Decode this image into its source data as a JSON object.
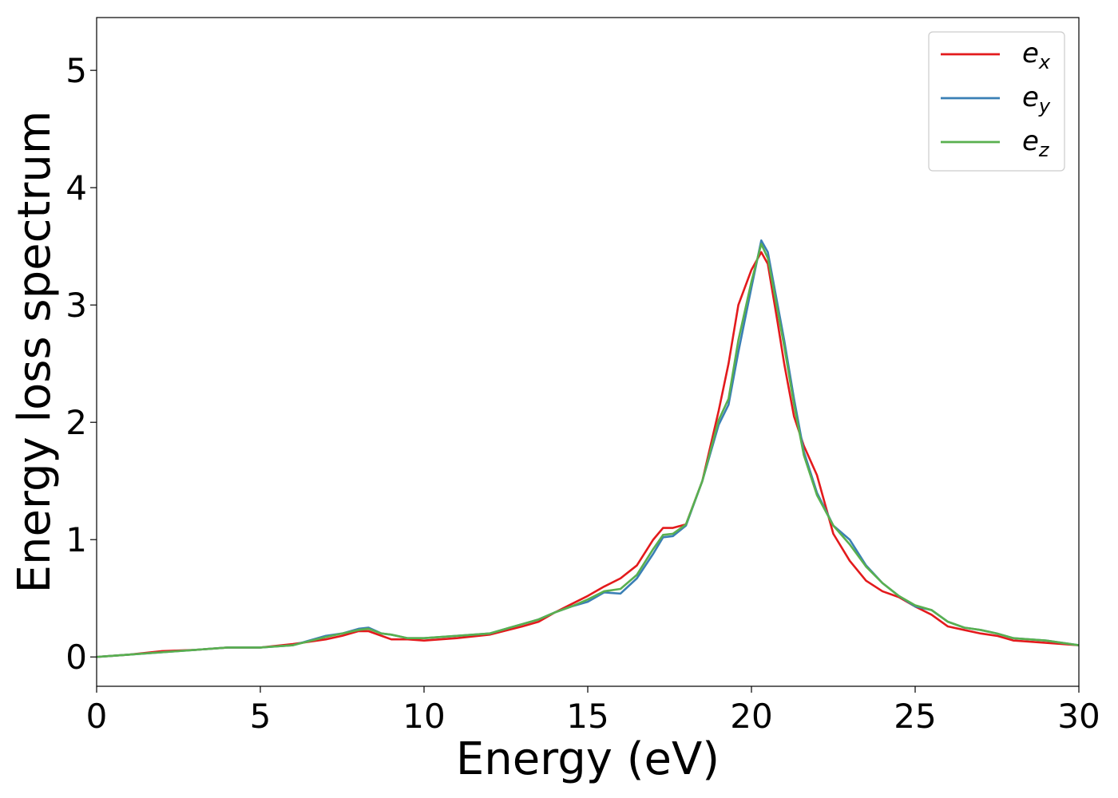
{
  "chart_data": {
    "type": "line",
    "title": "",
    "xlabel": "Energy (eV)",
    "ylabel": "Energy loss spectrum",
    "xlim": [
      0,
      30
    ],
    "ylim": [
      -0.25,
      5.45
    ],
    "xticks": [
      0,
      5,
      10,
      15,
      20,
      25,
      30
    ],
    "yticks": [
      0,
      1,
      2,
      3,
      4,
      5
    ],
    "grid": false,
    "legend_position": "top-right",
    "series": [
      {
        "name": "e_x",
        "label_base": "e",
        "label_sub": "x",
        "color": "#e31a1c",
        "x": [
          0,
          1,
          2,
          3,
          4,
          5,
          6,
          7,
          7.5,
          8,
          8.3,
          8.7,
          9,
          9.5,
          10,
          11,
          12,
          13,
          13.5,
          14,
          14.5,
          15,
          15.5,
          16,
          16.5,
          17,
          17.3,
          17.6,
          18,
          18.5,
          19,
          19.3,
          19.6,
          20,
          20.3,
          20.5,
          20.8,
          21,
          21.3,
          21.6,
          22,
          22.5,
          23,
          23.5,
          24,
          24.5,
          25,
          25.5,
          26,
          26.5,
          27,
          27.5,
          28,
          29,
          30
        ],
        "y": [
          0.0,
          0.02,
          0.05,
          0.06,
          0.08,
          0.08,
          0.11,
          0.15,
          0.18,
          0.22,
          0.22,
          0.18,
          0.15,
          0.15,
          0.14,
          0.16,
          0.19,
          0.26,
          0.3,
          0.38,
          0.45,
          0.52,
          0.6,
          0.67,
          0.78,
          1.0,
          1.1,
          1.1,
          1.13,
          1.5,
          2.1,
          2.5,
          3.0,
          3.3,
          3.45,
          3.35,
          2.85,
          2.5,
          2.05,
          1.8,
          1.55,
          1.05,
          0.82,
          0.65,
          0.56,
          0.51,
          0.43,
          0.36,
          0.26,
          0.23,
          0.2,
          0.18,
          0.14,
          0.12,
          0.1
        ]
      },
      {
        "name": "e_y",
        "label_base": "e",
        "label_sub": "y",
        "color": "#3a7fb5",
        "x": [
          0,
          1,
          2,
          3,
          4,
          5,
          6,
          7,
          7.5,
          8,
          8.3,
          8.7,
          9,
          9.5,
          10,
          11,
          12,
          13,
          13.5,
          14,
          14.5,
          15,
          15.5,
          16,
          16.5,
          17,
          17.3,
          17.6,
          18,
          18.5,
          19,
          19.3,
          19.6,
          20,
          20.3,
          20.5,
          20.8,
          21,
          21.3,
          21.6,
          22,
          22.5,
          23,
          23.5,
          24,
          24.5,
          25,
          25.5,
          26,
          26.5,
          27,
          27.5,
          28,
          29,
          30
        ],
        "y": [
          0.0,
          0.02,
          0.04,
          0.06,
          0.08,
          0.08,
          0.1,
          0.18,
          0.2,
          0.24,
          0.25,
          0.2,
          0.19,
          0.16,
          0.16,
          0.18,
          0.2,
          0.28,
          0.32,
          0.38,
          0.43,
          0.47,
          0.55,
          0.54,
          0.67,
          0.88,
          1.02,
          1.03,
          1.12,
          1.5,
          1.98,
          2.15,
          2.6,
          3.15,
          3.55,
          3.45,
          3.0,
          2.7,
          2.2,
          1.75,
          1.4,
          1.12,
          1.0,
          0.78,
          0.63,
          0.52,
          0.43,
          0.4,
          0.3,
          0.25,
          0.23,
          0.2,
          0.16,
          0.14,
          0.1
        ]
      },
      {
        "name": "e_z",
        "label_base": "e",
        "label_sub": "z",
        "color": "#59b04f",
        "x": [
          0,
          1,
          2,
          3,
          4,
          5,
          6,
          7,
          7.5,
          8,
          8.3,
          8.7,
          9,
          9.5,
          10,
          11,
          12,
          13,
          13.5,
          14,
          14.5,
          15,
          15.5,
          16,
          16.5,
          17,
          17.3,
          17.6,
          18,
          18.5,
          19,
          19.3,
          19.6,
          20,
          20.3,
          20.5,
          20.8,
          21,
          21.3,
          21.6,
          22,
          22.5,
          23,
          23.5,
          24,
          24.5,
          25,
          25.5,
          26,
          26.5,
          27,
          27.5,
          28,
          29,
          30
        ],
        "y": [
          0.0,
          0.02,
          0.04,
          0.06,
          0.08,
          0.08,
          0.1,
          0.17,
          0.2,
          0.23,
          0.24,
          0.2,
          0.19,
          0.16,
          0.16,
          0.18,
          0.2,
          0.28,
          0.32,
          0.38,
          0.43,
          0.49,
          0.56,
          0.58,
          0.7,
          0.92,
          1.04,
          1.05,
          1.13,
          1.5,
          2.02,
          2.2,
          2.7,
          3.2,
          3.52,
          3.4,
          2.95,
          2.65,
          2.15,
          1.72,
          1.38,
          1.12,
          0.96,
          0.77,
          0.63,
          0.52,
          0.44,
          0.4,
          0.3,
          0.25,
          0.23,
          0.2,
          0.16,
          0.14,
          0.1
        ]
      }
    ]
  }
}
